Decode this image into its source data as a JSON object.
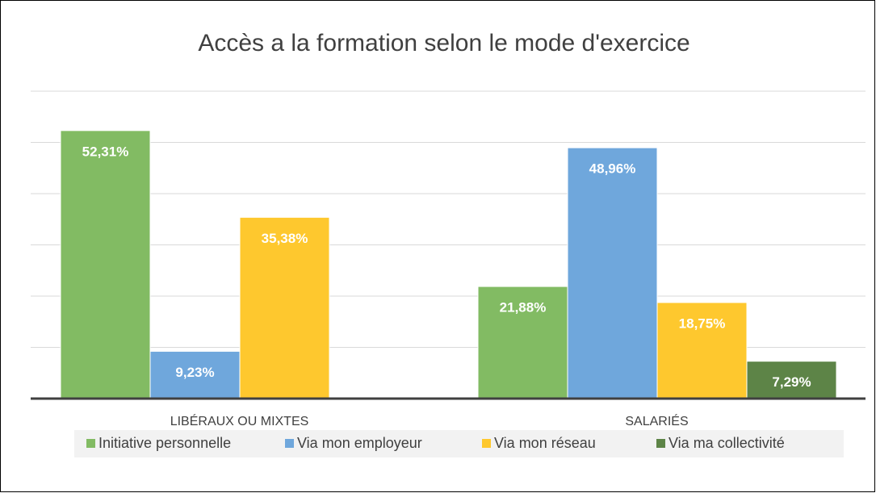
{
  "chart_data": {
    "type": "bar",
    "title": "Accès a la formation selon le mode d'exercice",
    "categories": [
      "LIBÉRAUX OU MIXTES",
      "SALARIÉS"
    ],
    "series": [
      {
        "name": "Initiative personnelle",
        "color": "#82bb63",
        "values": [
          52.31,
          21.88
        ],
        "value_labels": [
          "52,31%",
          "21,88%"
        ]
      },
      {
        "name": "Via mon employeur",
        "color": "#6fa7dc",
        "values": [
          9.23,
          48.96
        ],
        "value_labels": [
          "9,23%",
          "48,96%"
        ]
      },
      {
        "name": "Via mon réseau",
        "color": "#fec82e",
        "values": [
          35.38,
          18.75
        ],
        "value_labels": [
          "35,38%",
          "18,75%"
        ]
      },
      {
        "name": "Via ma collectivité",
        "color": "#5d8447",
        "values": [
          null,
          7.29
        ],
        "value_labels": [
          null,
          "7,29%"
        ]
      }
    ],
    "ylim": [
      0,
      60
    ],
    "yticks": [
      0,
      10,
      20,
      30,
      40,
      50,
      60
    ],
    "grid": true,
    "legend": "bottom"
  }
}
